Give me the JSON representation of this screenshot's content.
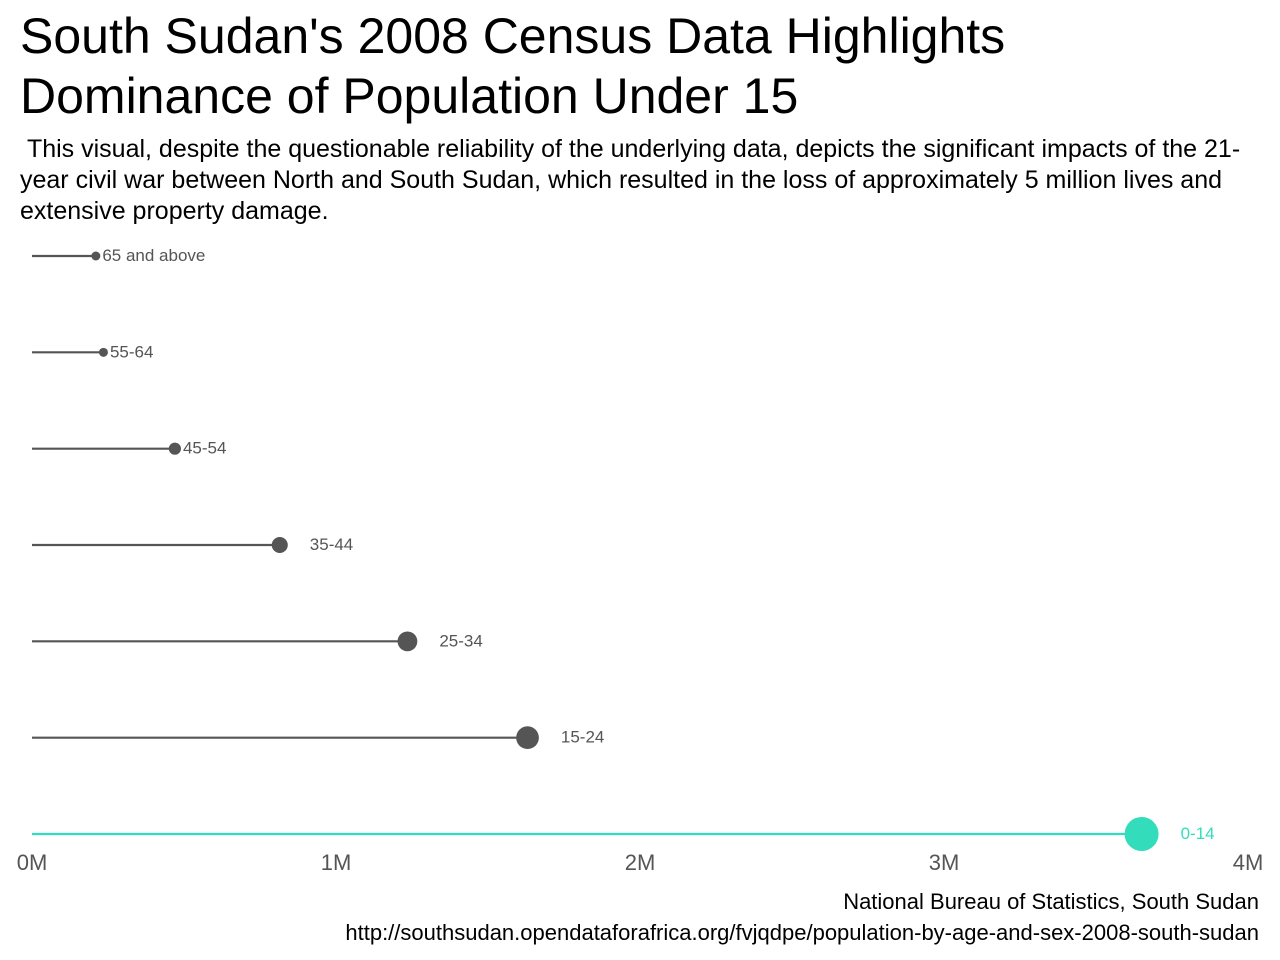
{
  "title": "South Sudan's 2008 Census Data Highlights Dominance of Population Under 15",
  "subtitle": " This visual, despite the questionable reliability of the underlying data, depicts the significant impacts of the 21-year civil war between North and South Sudan, which resulted in the loss of approximately 5 million lives and extensive property damage.",
  "caption": {
    "source": "National Bureau of Statistics, South Sudan",
    "url": "http://southsudan.opendataforafrica.org/fvjqdpe/population-by-age-and-sex-2008-south-sudan"
  },
  "colors": {
    "default": "#555555",
    "highlight": "#33DDBB",
    "axis_text": "#555555"
  },
  "chart_data": {
    "type": "lollipop",
    "orientation": "horizontal",
    "categories": [
      "65 and above",
      "55-64",
      "45-54",
      "35-44",
      "25-34",
      "15-24",
      "0-14"
    ],
    "values": [
      210000,
      235000,
      470000,
      815000,
      1235000,
      1630000,
      3650000
    ],
    "highlight": "0-14",
    "xlim": [
      0,
      4000000
    ],
    "x_ticks": [
      0,
      1000000,
      2000000,
      3000000,
      4000000
    ],
    "x_tick_labels": [
      "0M",
      "1M",
      "2M",
      "3M",
      "4M"
    ],
    "xlabel": "",
    "ylabel": "",
    "grid": false,
    "legend": "none",
    "point_size_encodes_value": true
  }
}
